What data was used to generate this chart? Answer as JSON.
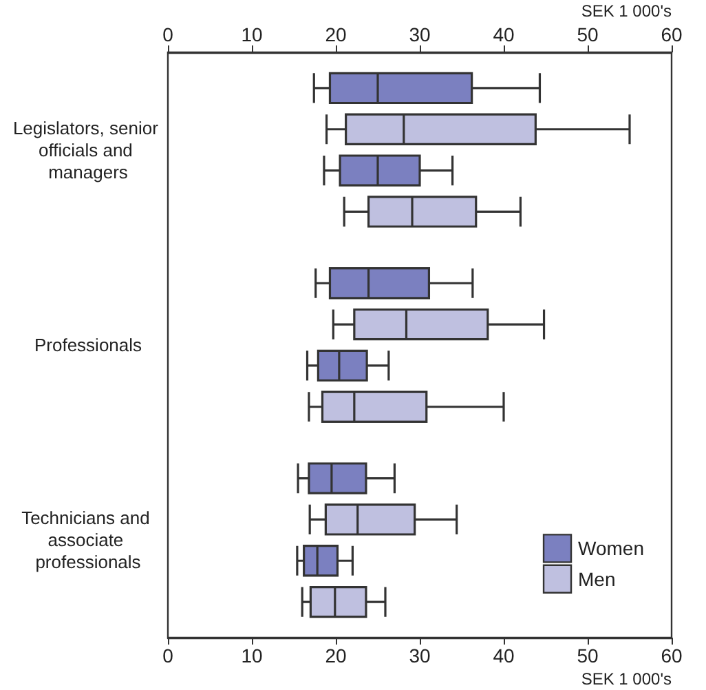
{
  "chart_data": {
    "type": "box",
    "orientation": "horizontal",
    "xlabel": "SEK 1 000's",
    "x2label": "SEK 1 000's",
    "categories": [
      "Legislators, senior officials and managers",
      "Professionals",
      "Technicians and associate professionals"
    ],
    "xlim": [
      0,
      60
    ],
    "xticks": [
      0,
      10,
      20,
      30,
      40,
      50,
      60
    ],
    "x2lim": [
      0,
      60
    ],
    "x2ticks": [
      0,
      10,
      20,
      30,
      40,
      50,
      60
    ],
    "grid": false,
    "legend": "bottom right",
    "series": [
      {
        "name": "Women",
        "color": "#7b80c0",
        "boxes": [
          {
            "low": 17.4,
            "q1": 19.3,
            "median": 25.0,
            "q3": 36.2,
            "high": 44.3
          },
          {
            "low": 17.6,
            "q1": 19.3,
            "median": 23.9,
            "q3": 31.1,
            "high": 36.3
          },
          {
            "low": 15.5,
            "q1": 16.8,
            "median": 19.5,
            "q3": 23.6,
            "high": 27.0
          }
        ]
      },
      {
        "name": "Men",
        "color": "#bfc0e0",
        "boxes": [
          {
            "low": 18.9,
            "q1": 21.2,
            "median": 28.1,
            "q3": 43.8,
            "high": 55.0
          },
          {
            "low": 19.7,
            "q1": 22.2,
            "median": 28.4,
            "q3": 38.1,
            "high": 44.8
          },
          {
            "low": 16.9,
            "q1": 18.8,
            "median": 22.6,
            "q3": 29.4,
            "high": 34.4
          }
        ]
      },
      {
        "color": "#7b80c0",
        "boxes": [
          {
            "low": 18.6,
            "q1": 20.5,
            "median": 25.0,
            "q3": 30.0,
            "high": 33.9
          },
          {
            "low": 16.6,
            "q1": 17.9,
            "median": 20.4,
            "q3": 23.7,
            "high": 26.3
          },
          {
            "low": 15.4,
            "q1": 16.2,
            "median": 17.8,
            "q3": 20.2,
            "high": 22.0
          }
        ]
      },
      {
        "color": "#bfc0e0",
        "boxes": [
          {
            "low": 21.0,
            "q1": 23.9,
            "median": 29.1,
            "q3": 36.7,
            "high": 42.0
          },
          {
            "low": 16.8,
            "q1": 18.4,
            "median": 22.2,
            "q3": 30.8,
            "high": 40.0
          },
          {
            "low": 16.0,
            "q1": 17.0,
            "median": 19.9,
            "q3": 23.6,
            "high": 25.9
          }
        ]
      }
    ]
  }
}
